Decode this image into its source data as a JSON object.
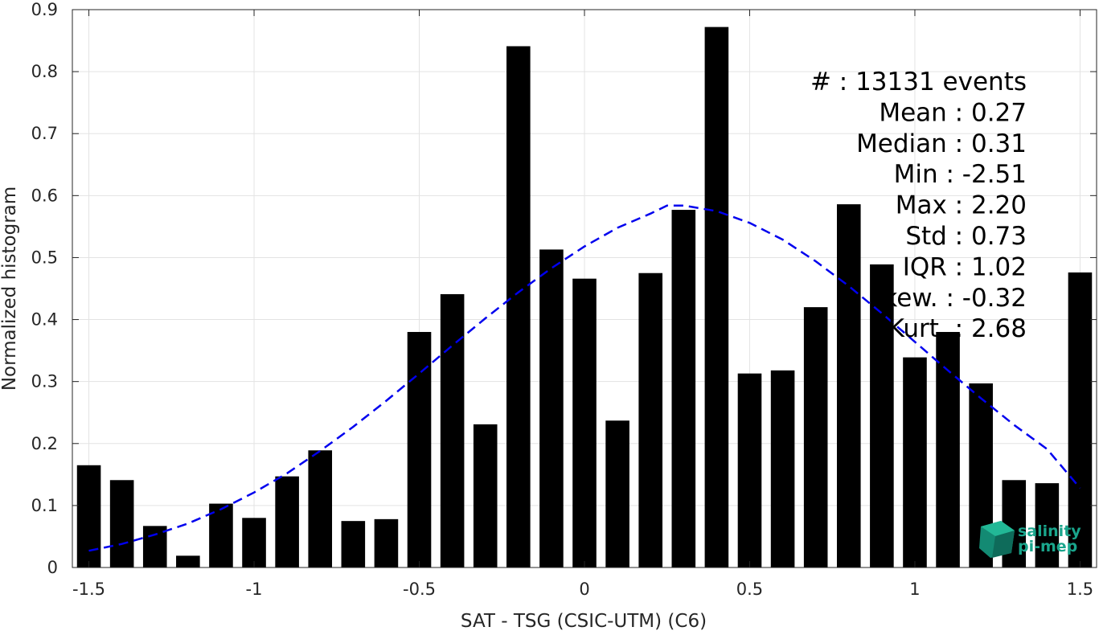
{
  "chart_data": {
    "type": "bar",
    "xlabel": "SAT - TSG (CSIC-UTM) (C6)",
    "ylabel": "Normalized histogram",
    "xlim": [
      -1.55,
      1.55
    ],
    "ylim": [
      0,
      0.9
    ],
    "x_ticks": [
      -1.5,
      -1,
      -0.5,
      0,
      0.5,
      1,
      1.5
    ],
    "x_tick_labels": [
      "-1.5",
      "-1",
      "-0.5",
      "0",
      "0.5",
      "1",
      "1.5"
    ],
    "y_ticks": [
      0,
      0.1,
      0.2,
      0.3,
      0.4,
      0.5,
      0.6,
      0.7,
      0.8,
      0.9
    ],
    "y_tick_labels": [
      "0",
      "0.1",
      "0.2",
      "0.3",
      "0.4",
      "0.5",
      "0.6",
      "0.7",
      "0.8",
      "0.9"
    ],
    "grid": true,
    "bar_color": "#000000",
    "curve_color": "#0000ee",
    "bins": [
      {
        "x": -1.5,
        "y": 0.165
      },
      {
        "x": -1.4,
        "y": 0.141
      },
      {
        "x": -1.3,
        "y": 0.067
      },
      {
        "x": -1.2,
        "y": 0.019
      },
      {
        "x": -1.1,
        "y": 0.103
      },
      {
        "x": -1.0,
        "y": 0.08
      },
      {
        "x": -0.9,
        "y": 0.147
      },
      {
        "x": -0.8,
        "y": 0.189
      },
      {
        "x": -0.7,
        "y": 0.075
      },
      {
        "x": -0.6,
        "y": 0.078
      },
      {
        "x": -0.5,
        "y": 0.38
      },
      {
        "x": -0.4,
        "y": 0.441
      },
      {
        "x": -0.3,
        "y": 0.231
      },
      {
        "x": -0.2,
        "y": 0.841
      },
      {
        "x": -0.1,
        "y": 0.513
      },
      {
        "x": 0.0,
        "y": 0.466
      },
      {
        "x": 0.1,
        "y": 0.237
      },
      {
        "x": 0.2,
        "y": 0.475
      },
      {
        "x": 0.3,
        "y": 0.577
      },
      {
        "x": 0.4,
        "y": 0.872
      },
      {
        "x": 0.5,
        "y": 0.313
      },
      {
        "x": 0.6,
        "y": 0.318
      },
      {
        "x": 0.7,
        "y": 0.42
      },
      {
        "x": 0.8,
        "y": 0.586
      },
      {
        "x": 0.9,
        "y": 0.489
      },
      {
        "x": 1.0,
        "y": 0.339
      },
      {
        "x": 1.1,
        "y": 0.38
      },
      {
        "x": 1.2,
        "y": 0.297
      },
      {
        "x": 1.3,
        "y": 0.141
      },
      {
        "x": 1.4,
        "y": 0.136
      },
      {
        "x": 1.5,
        "y": 0.476
      }
    ],
    "fit_curve": {
      "style": "dashed",
      "x": [
        -1.5,
        -1.4,
        -1.3,
        -1.2,
        -1.1,
        -1.0,
        -0.9,
        -0.8,
        -0.7,
        -0.6,
        -0.5,
        -0.4,
        -0.3,
        -0.2,
        -0.1,
        0.0,
        0.1,
        0.2,
        0.25,
        0.3,
        0.4,
        0.5,
        0.6,
        0.7,
        0.8,
        0.9,
        1.0,
        1.1,
        1.2,
        1.3,
        1.4,
        1.5
      ],
      "y": [
        0.027,
        0.038,
        0.053,
        0.071,
        0.094,
        0.121,
        0.152,
        0.188,
        0.227,
        0.269,
        0.313,
        0.358,
        0.402,
        0.444,
        0.483,
        0.518,
        0.548,
        0.571,
        0.584,
        0.584,
        0.575,
        0.556,
        0.529,
        0.494,
        0.454,
        0.41,
        0.364,
        0.318,
        0.273,
        0.23,
        0.191,
        0.128
      ]
    },
    "annotations": [
      "#  : 13131 events",
      "Mean : 0.27",
      "Median : 0.31",
      "Min : -2.51",
      "Max : 2.20",
      "Std : 0.73",
      "IQR : 1.02",
      "kew. : -0.32",
      "Kurt. : 2.68"
    ]
  },
  "logo": {
    "line1": "salinity",
    "line2": "pi-mep",
    "color": "#1aa58c"
  }
}
